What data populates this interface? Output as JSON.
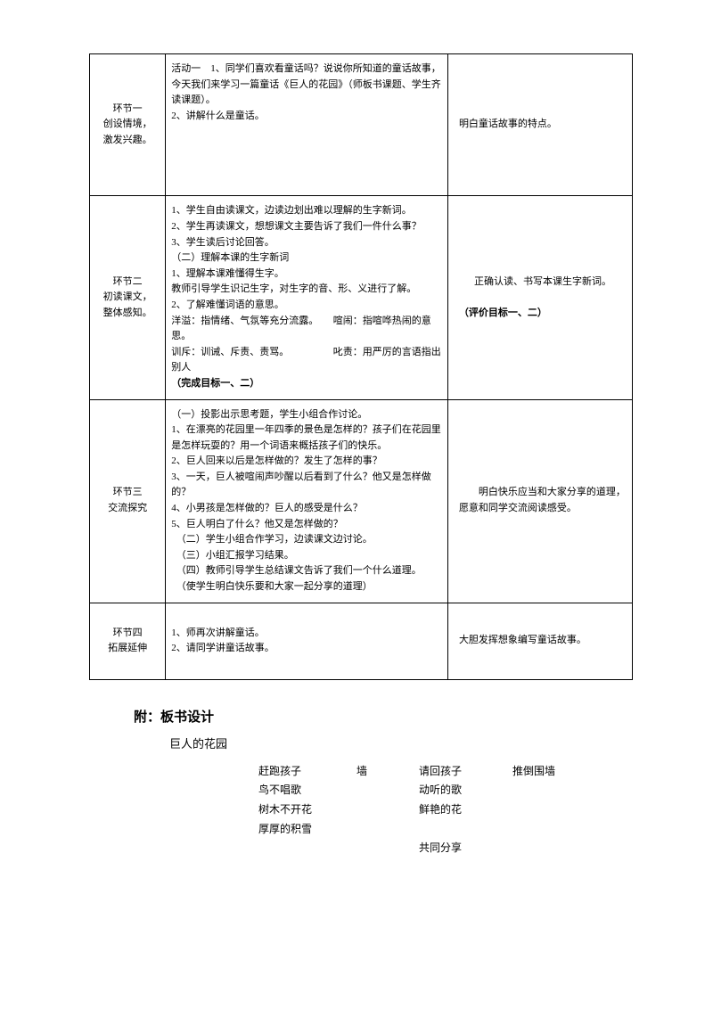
{
  "table": {
    "rows": [
      {
        "stage": "环节一\n创设情境，\n激发兴趣。",
        "activity": "活动一　1、同学们喜欢看童话吗？说说你所知道的童话故事，今天我们来学习一篇童话《巨人的花园》（师板书课题、学生齐读课题）。\n2、讲解什么是童话。",
        "eval": "明白童话故事的特点。"
      },
      {
        "stage": "环节二\n初读课文，\n整体感知。",
        "activity_lines": [
          "1、学生自由读课文，边读边划出难以理解的生字新词。",
          "2、学生再读课文，想想课文主要告诉了我们一件什么事？",
          "3、学生读后讨论回答。",
          "（二）理解本课的生字新词",
          "1、理解本课难懂得生字。",
          "教师引导学生识记生字，对生字的音、形、义进行了解。",
          "2、了解难懂词语的意思。",
          "洋溢：指情绪、气氛等充分流露。　　喧闹：指喧哗热闹的意思。",
          "训斥：训诫、斥责、责骂。　　　　　叱责：用严厉的言语指出别人"
        ],
        "activity_bold": "（完成目标一、二）",
        "eval_center": "正确认读、书写本课生字新词。",
        "eval_bold": "（评价目标一、二）"
      },
      {
        "stage": "环节三\n交流探究",
        "activity_lines": [
          "（一）投影出示思考题，学生小组合作讨论。",
          "1、在漂亮的花园里一年四季的景色是怎样的？孩子们在花园里是怎样玩耍的？用一个词语来概括孩子们的快乐。",
          "2、巨人回来以后是怎样做的？发生了怎样的事？",
          "3、一天，巨人被喧闹声吵醒以后看到了什么？他又是怎样做的？",
          "4、小男孩是怎样做的？巨人的感受是什么？",
          "5、巨人明白了什么？他又是怎样做的？",
          "　（二）学生小组合作学习，边读课文边讨论。",
          "　（三）小组汇报学习结果。",
          "　（四）教师引导学生总结课文告诉了我们一个什么道理。",
          "　（使学生明白快乐要和大家一起分享的道理）"
        ],
        "eval": "　　明白快乐应当和大家分享的道理，愿意和同学交流阅读感受。"
      },
      {
        "stage": "环节四\n拓展延伸",
        "activity": "1、师再次讲解童话。\n2、请同学讲童话故事。",
        "eval": "大胆发挥想象编写童话故事。"
      }
    ]
  },
  "appendix": {
    "title": "附：板书设计",
    "subtitle": "巨人的花园",
    "board": [
      {
        "c1": "赶跑孩子",
        "c2": "墙",
        "c3": "请回孩子",
        "c4": "推倒围墙"
      },
      {
        "c1": "鸟不唱歌",
        "c2": "",
        "c3": "动听的歌",
        "c4": ""
      },
      {
        "c1": "树木不开花",
        "c2": "",
        "c3": "鲜艳的花",
        "c4": ""
      },
      {
        "c1": "厚厚的积雪",
        "c2": "",
        "c3": "",
        "c4": ""
      },
      {
        "c1": "",
        "c2": "",
        "c3": "共同分享",
        "c4": ""
      }
    ]
  }
}
